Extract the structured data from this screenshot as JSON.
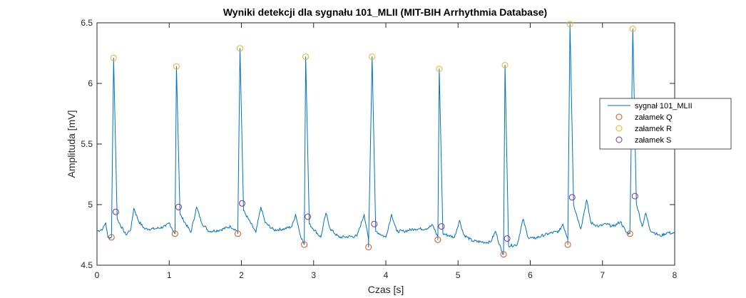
{
  "chart_data": {
    "type": "line",
    "title": "Wyniki detekcji dla sygnału 101_MLII (MIT-BIH Arrhythmia Database)",
    "xlabel": "Czas [s]",
    "ylabel": "Amplituda [mV]",
    "xlim": [
      0,
      8
    ],
    "ylim": [
      4.5,
      6.5
    ],
    "xticks": [
      "0",
      "1",
      "2",
      "3",
      "4",
      "5",
      "6",
      "7",
      "8"
    ],
    "yticks": [
      "4.5",
      "5",
      "5.5",
      "6",
      "6.5"
    ],
    "grid": false,
    "legend_position": "right",
    "series": [
      {
        "name": "sygnał 101_MLII",
        "kind": "line",
        "color": "#0072bd",
        "baseline": [
          [
            0.0,
            4.78
          ],
          [
            0.08,
            4.8
          ],
          [
            0.12,
            4.85
          ],
          [
            0.15,
            4.73
          ],
          [
            0.4,
            4.75
          ],
          [
            0.47,
            4.8
          ],
          [
            0.51,
            4.97
          ],
          [
            0.58,
            4.86
          ],
          [
            0.66,
            4.8
          ],
          [
            0.8,
            4.8
          ],
          [
            0.95,
            4.82
          ],
          [
            1.0,
            4.85
          ],
          [
            1.06,
            4.78
          ],
          [
            1.3,
            4.77
          ],
          [
            1.38,
            4.98
          ],
          [
            1.45,
            4.85
          ],
          [
            1.55,
            4.78
          ],
          [
            1.7,
            4.79
          ],
          [
            1.85,
            4.82
          ],
          [
            1.95,
            4.78
          ],
          [
            2.2,
            4.77
          ],
          [
            2.27,
            4.98
          ],
          [
            2.33,
            4.85
          ],
          [
            2.45,
            4.79
          ],
          [
            2.6,
            4.8
          ],
          [
            2.7,
            4.82
          ],
          [
            2.75,
            4.92
          ],
          [
            2.82,
            4.74
          ],
          [
            3.1,
            4.73
          ],
          [
            3.17,
            4.93
          ],
          [
            3.23,
            4.8
          ],
          [
            3.35,
            4.73
          ],
          [
            3.6,
            4.74
          ],
          [
            3.7,
            4.92
          ],
          [
            3.76,
            4.71
          ],
          [
            4.0,
            4.73
          ],
          [
            4.08,
            4.92
          ],
          [
            4.15,
            4.78
          ],
          [
            4.25,
            4.78
          ],
          [
            4.4,
            4.8
          ],
          [
            4.55,
            4.8
          ],
          [
            4.65,
            4.83
          ],
          [
            4.72,
            4.73
          ],
          [
            4.95,
            4.73
          ],
          [
            5.02,
            4.87
          ],
          [
            5.08,
            4.75
          ],
          [
            5.2,
            4.7
          ],
          [
            5.35,
            4.69
          ],
          [
            5.45,
            4.69
          ],
          [
            5.52,
            4.78
          ],
          [
            5.6,
            4.62
          ],
          [
            5.82,
            4.67
          ],
          [
            5.9,
            4.88
          ],
          [
            5.97,
            4.73
          ],
          [
            6.05,
            4.72
          ],
          [
            6.25,
            4.76
          ],
          [
            6.4,
            4.78
          ],
          [
            6.45,
            4.84
          ],
          [
            6.52,
            4.72
          ],
          [
            6.7,
            4.8
          ],
          [
            6.78,
            5.04
          ],
          [
            6.84,
            4.85
          ],
          [
            6.95,
            4.82
          ],
          [
            7.05,
            4.84
          ],
          [
            7.15,
            4.82
          ],
          [
            7.25,
            4.86
          ],
          [
            7.33,
            4.77
          ],
          [
            7.55,
            4.82
          ],
          [
            7.6,
            4.93
          ],
          [
            7.66,
            4.79
          ],
          [
            7.8,
            4.74
          ],
          [
            7.9,
            4.77
          ],
          [
            8.0,
            4.76
          ]
        ]
      },
      {
        "name": "załamek Q",
        "kind": "marker",
        "color": "#d95319",
        "x": [
          0.2,
          1.08,
          1.95,
          2.87,
          3.76,
          4.72,
          5.63,
          6.52,
          7.38
        ],
        "y": [
          4.73,
          4.76,
          4.76,
          4.67,
          4.65,
          4.71,
          4.59,
          4.67,
          4.76
        ]
      },
      {
        "name": "załamek R",
        "kind": "marker",
        "color": "#edb120",
        "x": [
          0.23,
          1.1,
          1.98,
          2.89,
          3.81,
          4.74,
          5.65,
          6.55,
          7.42
        ],
        "y": [
          6.21,
          6.14,
          6.29,
          6.22,
          6.22,
          6.12,
          6.15,
          6.49,
          6.45
        ]
      },
      {
        "name": "załamek S",
        "kind": "marker",
        "color": "#7e2f8e",
        "x": [
          0.26,
          1.13,
          2.01,
          2.92,
          3.84,
          4.77,
          5.68,
          6.58,
          7.45
        ],
        "y": [
          4.94,
          4.98,
          5.01,
          4.9,
          4.84,
          4.82,
          4.72,
          5.06,
          5.07
        ]
      }
    ]
  }
}
